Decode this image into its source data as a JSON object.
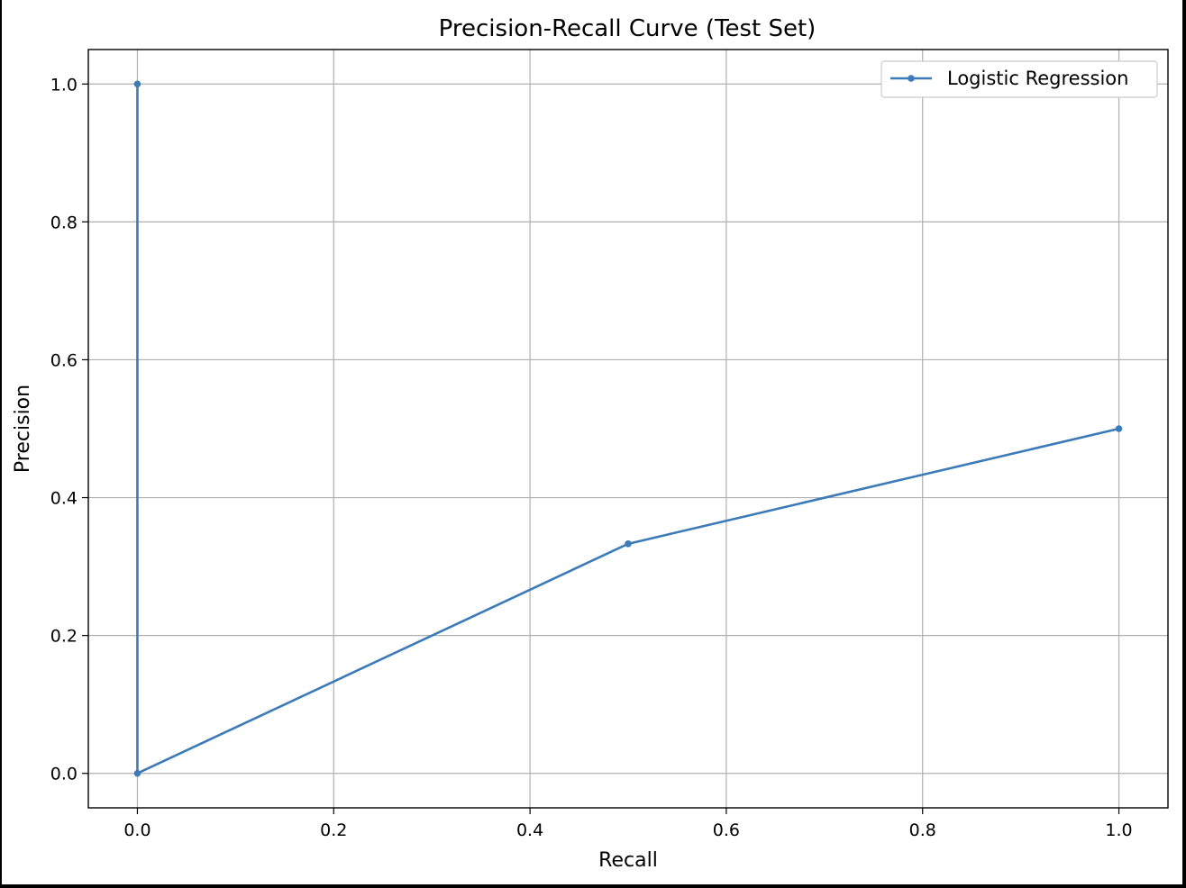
{
  "chart_data": {
    "type": "line",
    "title": "Precision-Recall Curve (Test Set)",
    "xlabel": "Recall",
    "ylabel": "Precision",
    "xlim": [
      -0.05,
      1.05
    ],
    "ylim": [
      -0.05,
      1.05
    ],
    "xticks": [
      0.0,
      0.2,
      0.4,
      0.6,
      0.8,
      1.0
    ],
    "xtick_labels": [
      "0.0",
      "0.2",
      "0.4",
      "0.6",
      "0.8",
      "1.0"
    ],
    "yticks": [
      0.0,
      0.2,
      0.4,
      0.6,
      0.8,
      1.0
    ],
    "ytick_labels": [
      "0.0",
      "0.2",
      "0.4",
      "0.6",
      "0.8",
      "1.0"
    ],
    "grid": true,
    "legend_position": "top-right",
    "series": [
      {
        "name": "Logistic Regression",
        "color": "#3d7ab8",
        "marker": "circle",
        "x": [
          0.0,
          0.0,
          0.5,
          1.0
        ],
        "y": [
          1.0,
          0.0,
          0.333,
          0.5
        ]
      }
    ]
  }
}
